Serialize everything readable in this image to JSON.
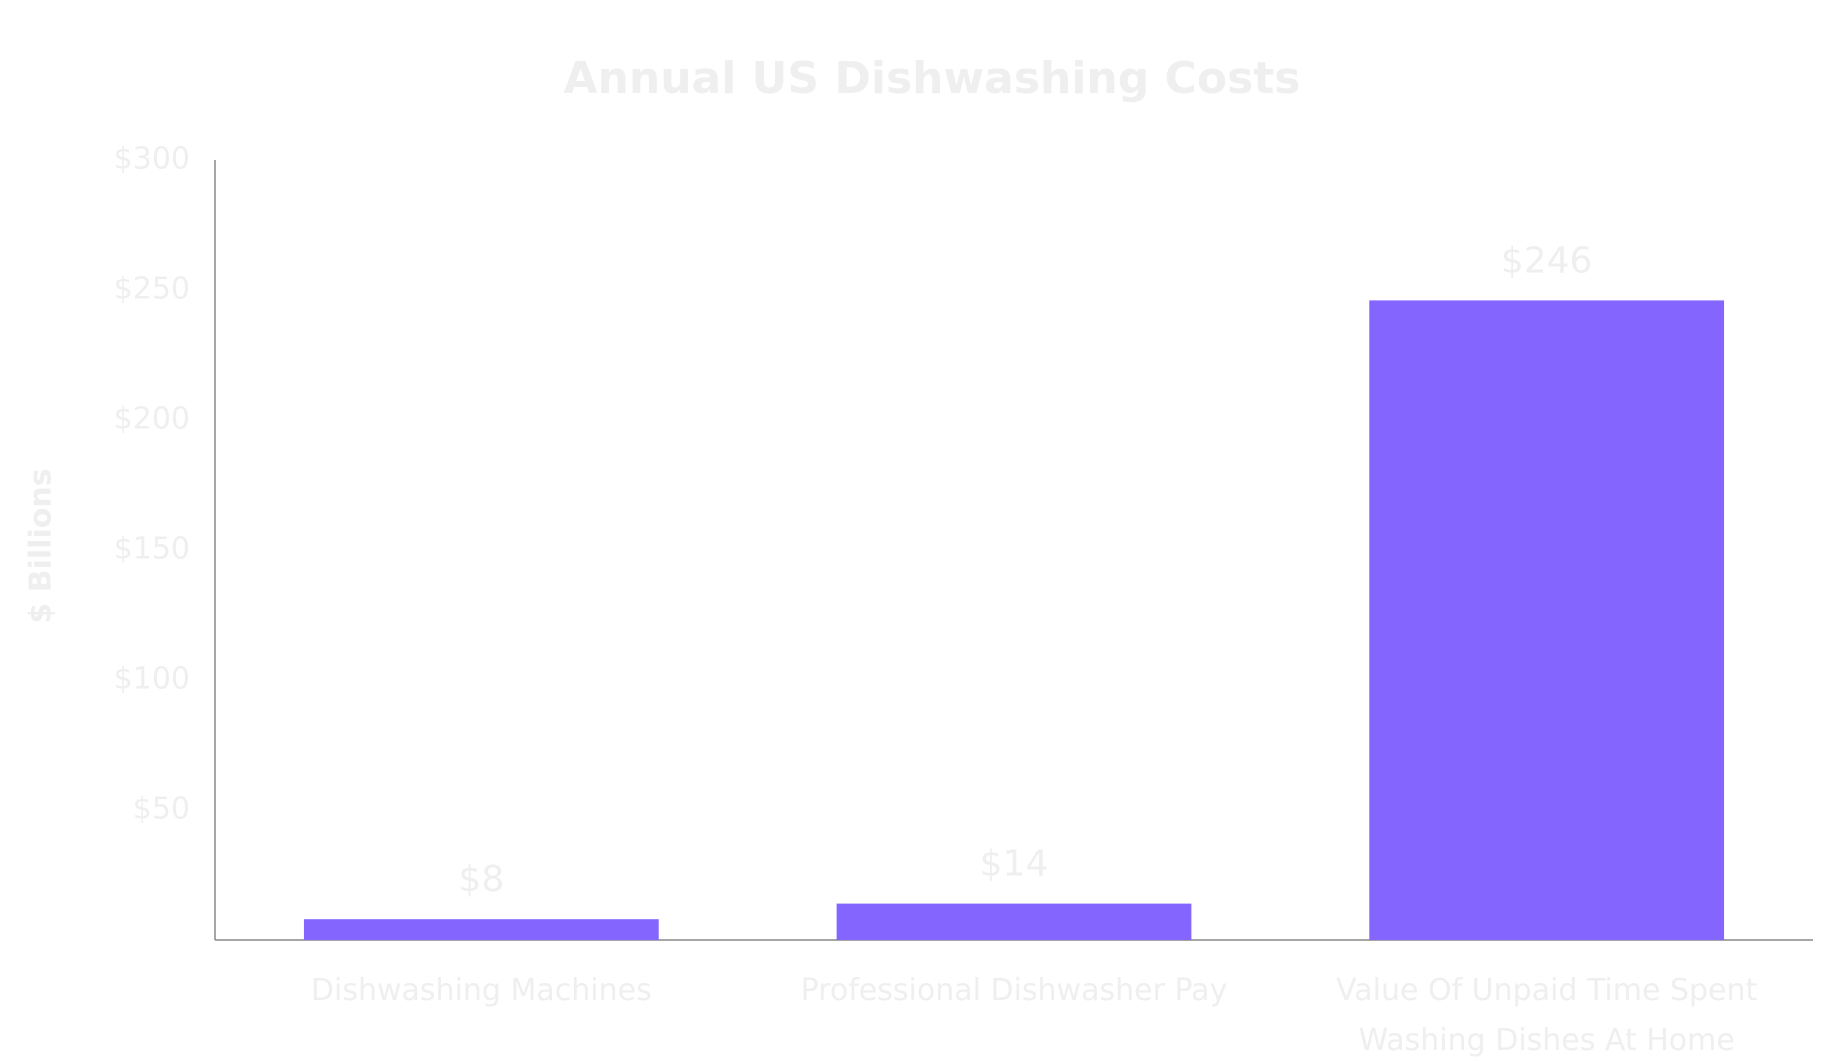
{
  "chart_data": {
    "type": "bar",
    "title": "Annual US Dishwashing Costs",
    "y_label": "$ Billions",
    "categories": [
      "Dishwashing Machines",
      "Professional Dishwasher Pay",
      "Value Of Unpaid Time Spent Washing Dishes At Home"
    ],
    "values": [
      8,
      14,
      246
    ],
    "value_labels": [
      "$8",
      "$14",
      "$246"
    ],
    "color": "#8466ff",
    "ylim": [
      0,
      300
    ],
    "yticks": [
      {
        "value": 50,
        "label": "$50"
      },
      {
        "value": 100,
        "label": "$100"
      },
      {
        "value": 150,
        "label": "$150"
      },
      {
        "value": 200,
        "label": "$200"
      },
      {
        "value": 250,
        "label": "$250"
      },
      {
        "value": 300,
        "label": "$300"
      }
    ],
    "grid": false
  }
}
